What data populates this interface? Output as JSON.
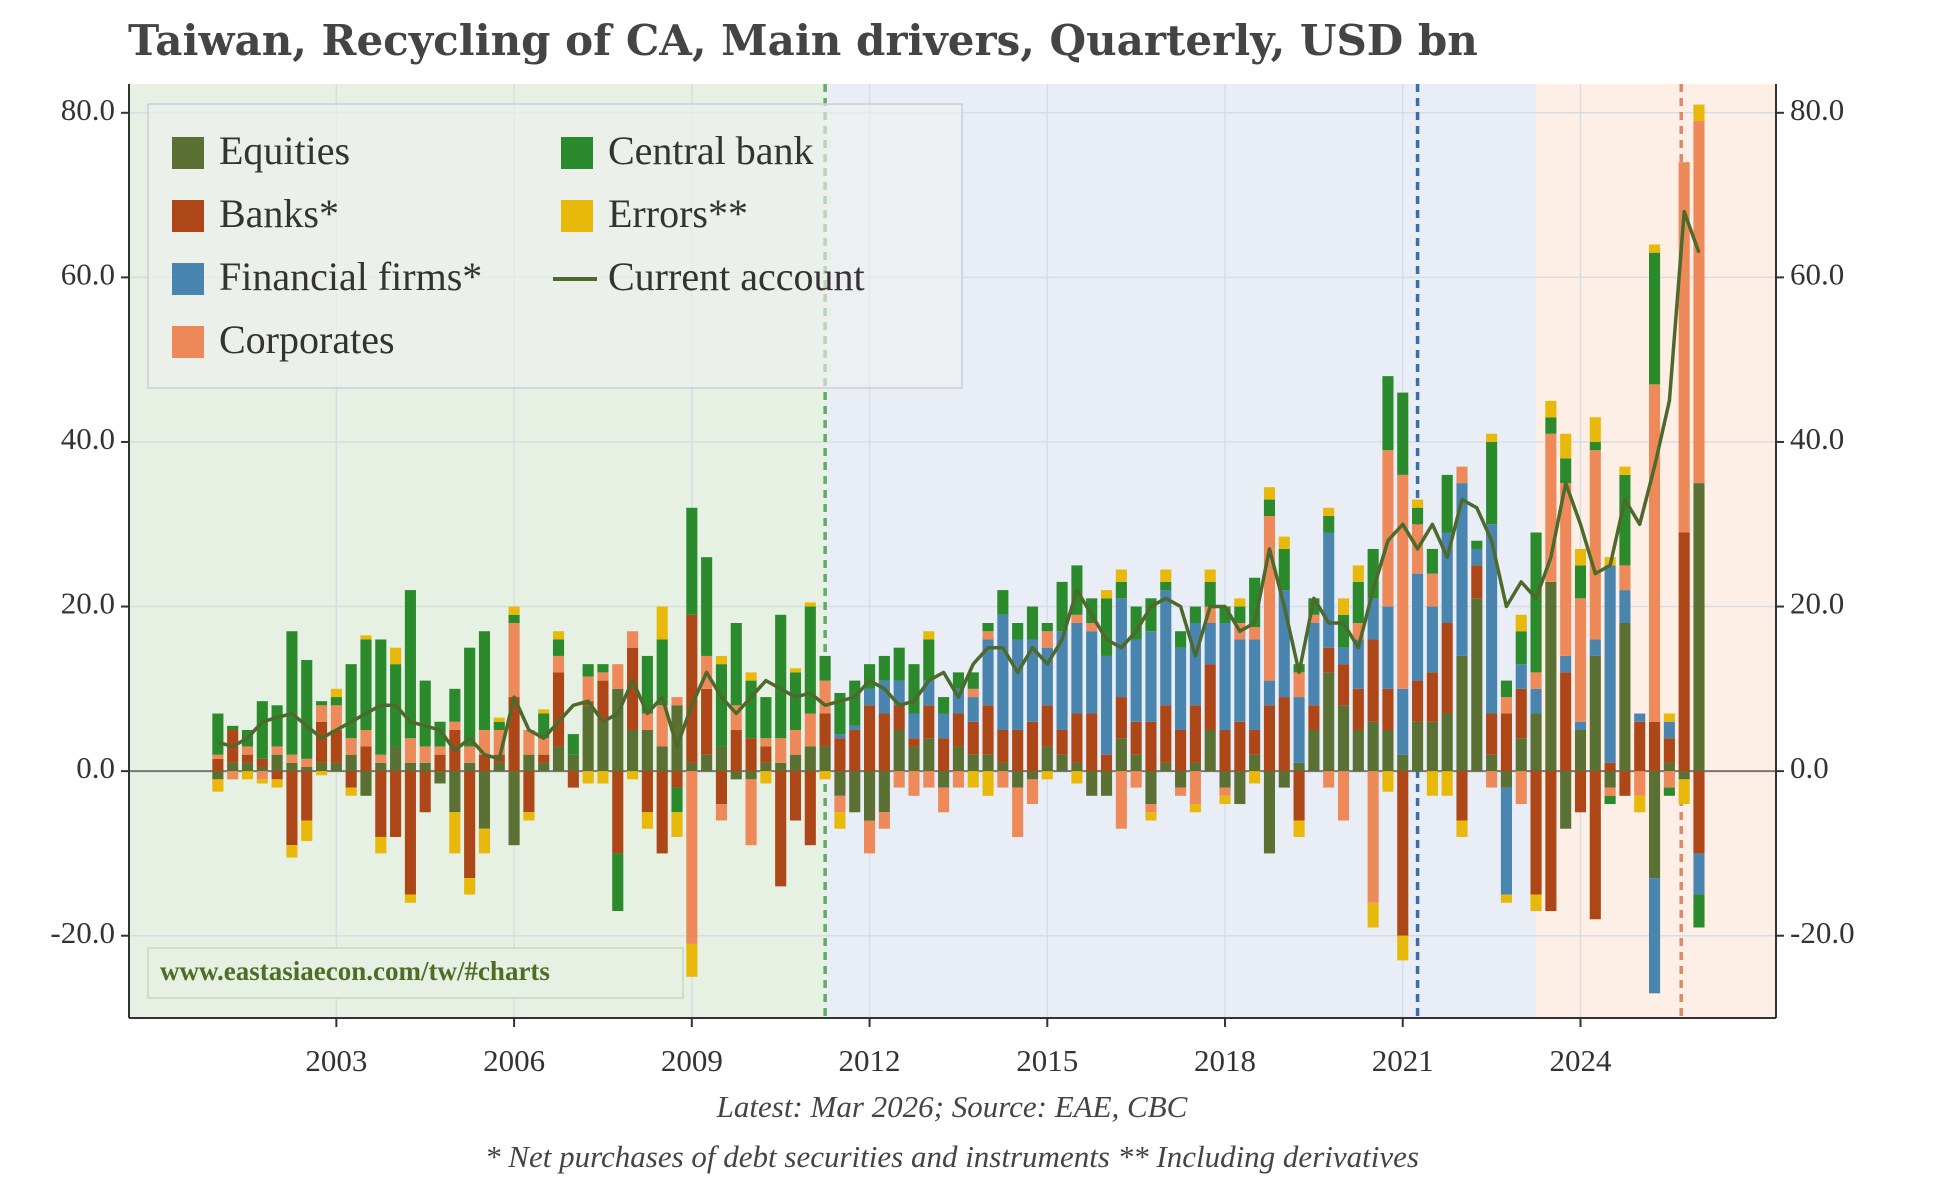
{
  "chart_data": {
    "type": "bar",
    "stacked": true,
    "title": "Taiwan, Recycling of CA, Main drivers, Quarterly, USD bn",
    "footnotes": [
      "Latest: Mar 2026; Source: EAE, CBC",
      "* Net purchases of debt securities and instruments ** Including derivatives"
    ],
    "watermark": "www.eastasiaecon.com/tw/#charts",
    "x": [
      2001.0,
      2001.25,
      2001.5,
      2001.75,
      2002.0,
      2002.25,
      2002.5,
      2002.75,
      2003.0,
      2003.25,
      2003.5,
      2003.75,
      2004.0,
      2004.25,
      2004.5,
      2004.75,
      2005.0,
      2005.25,
      2005.5,
      2005.75,
      2006.0,
      2006.25,
      2006.5,
      2006.75,
      2007.0,
      2007.25,
      2007.5,
      2007.75,
      2008.0,
      2008.25,
      2008.5,
      2008.75,
      2009.0,
      2009.25,
      2009.5,
      2009.75,
      2010.0,
      2010.25,
      2010.5,
      2010.75,
      2011.0,
      2011.25,
      2011.5,
      2011.75,
      2012.0,
      2012.25,
      2012.5,
      2012.75,
      2013.0,
      2013.25,
      2013.5,
      2013.75,
      2014.0,
      2014.25,
      2014.5,
      2014.75,
      2015.0,
      2015.25,
      2015.5,
      2015.75,
      2016.0,
      2016.25,
      2016.5,
      2016.75,
      2017.0,
      2017.25,
      2017.5,
      2017.75,
      2018.0,
      2018.25,
      2018.5,
      2018.75,
      2019.0,
      2019.25,
      2019.5,
      2019.75,
      2020.0,
      2020.25,
      2020.5,
      2020.75,
      2021.0,
      2021.25,
      2021.5,
      2021.75,
      2022.0,
      2022.25,
      2022.5,
      2022.75,
      2023.0,
      2023.25,
      2023.5,
      2023.75,
      2024.0,
      2024.25,
      2024.5,
      2024.75,
      2025.0,
      2025.25,
      2025.5,
      2025.75,
      2026.0
    ],
    "series": [
      {
        "name": "Equities",
        "color": "#5b7033",
        "values": [
          -1,
          1,
          1,
          0.5,
          2,
          1,
          0.5,
          1,
          1,
          2,
          -3,
          1,
          3,
          1,
          1,
          -1.5,
          -5,
          1,
          -7,
          1,
          -9,
          2,
          1,
          3,
          2,
          8,
          6,
          10,
          5,
          5,
          3,
          8,
          1,
          2,
          3,
          -1,
          -1,
          1,
          1,
          2,
          3,
          3,
          -3,
          -5,
          -6,
          -5,
          5,
          3,
          4,
          -2,
          3,
          2,
          2,
          1,
          -2,
          -1,
          3,
          2,
          1,
          -3,
          -3,
          4,
          2,
          -4,
          1,
          -2,
          1,
          5,
          -2,
          -4,
          2,
          -10,
          -2,
          1,
          5,
          12,
          8,
          5,
          6,
          5,
          2,
          6,
          6,
          7,
          14,
          21,
          2,
          -2,
          4,
          7,
          23,
          -7,
          5,
          14,
          -2,
          18,
          0,
          -13,
          1,
          -1,
          35
        ]
      },
      {
        "name": "Banks*",
        "color": "#ae4717",
        "values": [
          1.5,
          4,
          1,
          1,
          -1,
          -9,
          -6,
          5,
          4,
          -2,
          3,
          -8,
          -8,
          -15,
          -5,
          2,
          5,
          -13,
          2,
          1,
          9,
          -5,
          1,
          9,
          -2,
          0.5,
          5,
          -10,
          10,
          -5,
          -10,
          -2,
          18,
          8,
          -4,
          5,
          4,
          2,
          -14,
          -6,
          -9,
          4,
          4,
          5,
          8,
          7,
          3,
          1,
          4,
          4,
          4,
          4,
          6,
          4,
          5,
          6,
          5,
          3,
          6,
          7,
          2,
          5,
          4,
          6,
          7,
          5,
          7,
          8,
          5,
          6,
          3,
          8,
          9,
          -6,
          3,
          3,
          5,
          5,
          10,
          5,
          -20,
          5,
          6,
          11,
          -6,
          4,
          5,
          7,
          6,
          -15,
          -17,
          12,
          -5,
          -18,
          1,
          -3,
          6,
          6,
          3,
          29,
          -10
        ]
      },
      {
        "name": "Financial firms*",
        "color": "#4a85b0",
        "values": [
          0,
          0,
          0,
          0,
          0,
          0,
          0,
          0,
          0,
          0,
          0,
          0,
          0,
          0,
          0,
          0,
          0,
          0,
          0,
          0,
          0,
          0,
          0,
          0,
          0,
          0,
          0,
          0,
          0,
          0,
          0,
          0,
          0,
          0,
          0,
          0,
          0,
          0,
          0,
          0,
          0,
          0,
          0.5,
          0.5,
          2,
          4,
          3,
          3,
          3,
          3,
          3,
          3,
          8,
          14,
          11,
          10,
          7,
          12,
          11,
          10,
          12,
          12,
          10,
          11,
          14,
          10,
          10,
          5,
          13,
          10,
          11,
          3,
          13,
          8,
          10,
          14,
          2,
          6,
          5,
          10,
          8,
          13,
          8,
          11,
          21,
          2,
          23,
          -13,
          3,
          3,
          0,
          2,
          1,
          2,
          24,
          4,
          1,
          -14,
          2,
          0,
          -5
        ]
      },
      {
        "name": "Corporates",
        "color": "#ee8a5a",
        "values": [
          0.5,
          -1,
          1,
          -1,
          1,
          1,
          1,
          2,
          3,
          2,
          2,
          1,
          0,
          3,
          2,
          1,
          1,
          2,
          3,
          3,
          9,
          3,
          2,
          2,
          0,
          3,
          1,
          3,
          2,
          2,
          5,
          1,
          -21,
          4,
          -2,
          3,
          -8,
          1,
          3,
          3,
          4,
          4,
          -2,
          0,
          -4,
          -2,
          -2,
          -3,
          -2,
          -3,
          -2,
          1,
          1,
          -2,
          -6,
          -3,
          2,
          0,
          1,
          1,
          0,
          -7,
          -2,
          -1,
          0,
          -1,
          -4,
          2,
          -1,
          2,
          1.5,
          20,
          0,
          3,
          1,
          -2,
          -6,
          2,
          -16,
          19,
          26,
          6,
          4,
          0,
          2,
          0,
          -2,
          2,
          -4,
          2,
          18,
          21,
          15,
          23,
          -1,
          3,
          -3,
          41,
          -2,
          45,
          44
        ]
      },
      {
        "name": "Central bank",
        "color": "#2b8a2b",
        "values": [
          5,
          0.5,
          2,
          7,
          5,
          15,
          12,
          0.5,
          1,
          9,
          11,
          14,
          10,
          18,
          8,
          3,
          4,
          12,
          12,
          1,
          1,
          0,
          3,
          2,
          2.5,
          1.5,
          1,
          -7,
          0,
          7,
          8,
          -3,
          13,
          12,
          10,
          10,
          7,
          5,
          15,
          7,
          13,
          3,
          5,
          5.5,
          3,
          3,
          4,
          6,
          5,
          2,
          2,
          2,
          1,
          3,
          2,
          4,
          1,
          6,
          6,
          3,
          7,
          2,
          4,
          4,
          1,
          2,
          2,
          3,
          2,
          2,
          6,
          2,
          5,
          1,
          2,
          2,
          4,
          5,
          6,
          9,
          10,
          2,
          3,
          7,
          0,
          1,
          10,
          2,
          4,
          17,
          2,
          3,
          4,
          1,
          -1,
          11,
          0,
          16,
          -1,
          0,
          -4
        ]
      },
      {
        "name": "Errors**",
        "color": "#e8b90a",
        "values": [
          -1.5,
          0,
          -1,
          -0.5,
          -1,
          -1.5,
          -2.5,
          -0.5,
          1,
          -1,
          0.5,
          -2,
          2,
          -1,
          0,
          0,
          -5,
          -2,
          -3,
          0.5,
          1,
          -1,
          0.5,
          1,
          0,
          -1.5,
          -1.5,
          0,
          -1,
          -2,
          4,
          -3,
          -4,
          0,
          1,
          0,
          1,
          -1.5,
          0,
          0.5,
          0.5,
          -1,
          -2,
          0,
          0,
          0,
          0,
          0,
          1,
          0,
          0,
          -2,
          -3,
          0,
          0,
          0,
          -1,
          0,
          -1.5,
          0,
          1,
          1.5,
          0,
          -1,
          1.5,
          0,
          -1,
          1.5,
          -1,
          1,
          -1.5,
          1.5,
          1.5,
          -2,
          0,
          1,
          2,
          2,
          -3,
          -2.5,
          -3,
          1,
          -3,
          -3,
          -2,
          0,
          1,
          -1,
          2,
          -2,
          2,
          3,
          2,
          3,
          1,
          1,
          -2,
          1,
          1,
          -3,
          2
        ]
      },
      {
        "name": "Current account",
        "color": "#4d6a2c",
        "type": "line",
        "values": [
          3.5,
          3,
          4,
          6,
          6.5,
          7,
          5.5,
          4,
          5,
          6,
          7,
          8,
          8,
          6,
          5.5,
          5,
          2.5,
          4,
          2,
          1.5,
          9,
          5,
          4,
          6,
          8,
          8.5,
          6,
          7,
          11,
          7,
          9,
          3,
          8,
          12,
          9,
          7,
          9,
          11,
          10,
          9,
          9.5,
          8,
          8.5,
          9,
          11,
          10,
          8,
          8.5,
          11,
          12,
          9,
          13,
          15,
          15,
          12,
          15,
          13,
          16,
          22,
          19,
          16,
          15,
          17,
          20,
          21,
          20,
          14,
          20,
          20,
          17,
          18,
          27,
          20,
          12,
          21,
          18,
          18,
          15,
          22,
          28,
          30,
          27,
          30,
          26,
          33,
          32,
          28,
          20,
          23,
          21,
          26,
          35,
          30,
          24,
          25,
          33,
          30,
          37,
          45,
          68,
          63
        ]
      }
    ],
    "xlim": [
      1999.5,
      2027.3
    ],
    "xticks": [
      2003,
      2006,
      2009,
      2012,
      2015,
      2018,
      2021,
      2024
    ],
    "ylim": [
      -30,
      83.5
    ],
    "yticks": [
      {
        "value": -20,
        "label": "-20.0"
      },
      {
        "value": 0,
        "label": "0.0"
      },
      {
        "value": 20,
        "label": "20.0"
      },
      {
        "value": 40,
        "label": "40.0"
      },
      {
        "value": 60,
        "label": "60.0"
      },
      {
        "value": 80,
        "label": "80.0"
      }
    ],
    "secondary_axis_mirror": true,
    "grid": true,
    "legend": "upper left",
    "shaded_periods": [
      {
        "start": 1999.5,
        "end": 2011.25,
        "color": "#e6f0e3"
      },
      {
        "start": 2011.25,
        "end": 2023.25,
        "color": "#e9eef6"
      },
      {
        "start": 2023.25,
        "end": 2027.3,
        "color": "#fdeee6"
      }
    ],
    "vlines": [
      {
        "x": 2011.25,
        "color": "#5fae5f"
      },
      {
        "x": 2021.25,
        "color": "#3a6fa5"
      },
      {
        "x": 2025.7,
        "color": "#e4866a"
      }
    ]
  }
}
